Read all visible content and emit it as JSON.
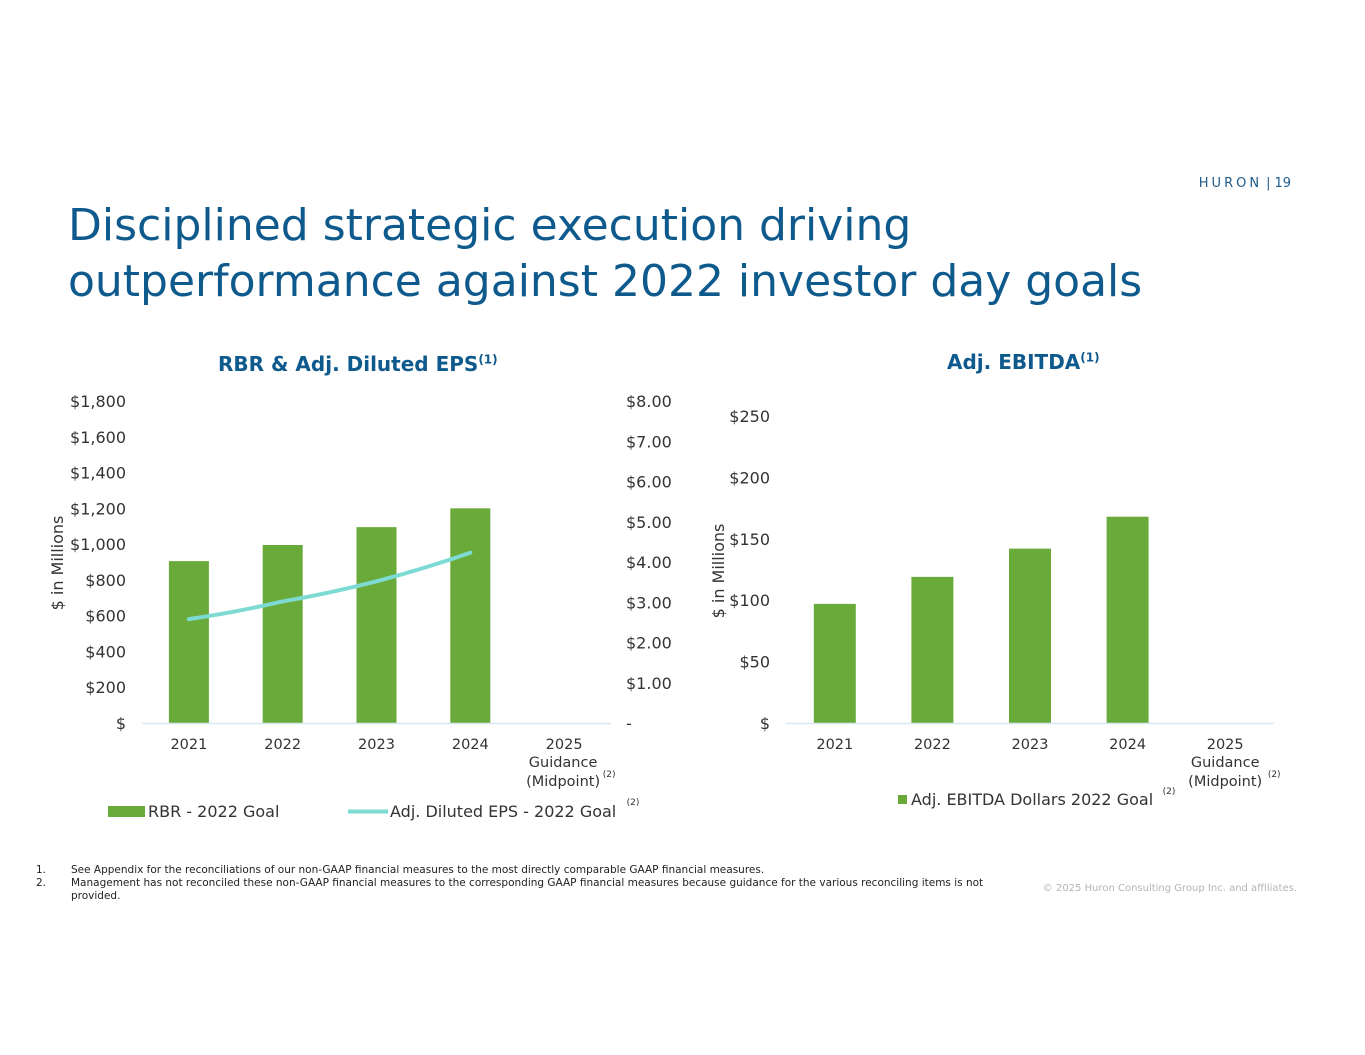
{
  "header": {
    "brand": "HURON",
    "separator": "|",
    "page_number": "19"
  },
  "title_line1": "Disciplined strategic execution driving",
  "title_line2": "outperformance against 2022 investor day goals",
  "chart_data": [
    {
      "type": "bar",
      "title": "RBR & Adj. Diluted EPS",
      "title_superscript": "(1)",
      "ylabel": "$ in Millions",
      "ylim": [
        0,
        1800
      ],
      "y_ticks": [
        "$",
        "$200",
        "$400",
        "$600",
        "$800",
        "$1,000",
        "$1,200",
        "$1,400",
        "$1,600",
        "$1,800"
      ],
      "y_tick_values": [
        0,
        200,
        400,
        600,
        800,
        1000,
        1200,
        1400,
        1600,
        1800
      ],
      "y2lim": [
        0,
        8
      ],
      "y2_ticks": [
        "-",
        "$1.00",
        "$2.00",
        "$3.00",
        "$4.00",
        "$5.00",
        "$6.00",
        "$7.00",
        "$8.00"
      ],
      "y2_tick_values": [
        0,
        1,
        2,
        3,
        4,
        5,
        6,
        7,
        8
      ],
      "categories": [
        "2021",
        "2022",
        "2023",
        "2024",
        "2025"
      ],
      "category_sublabels": [
        "Guidance",
        "(Midpoint)"
      ],
      "category_footnote": "(2)",
      "series": [
        {
          "name": "RBR - 2022 Goal",
          "type": "bar",
          "color": "#6aaa3a",
          "values": [
            905,
            995,
            1095,
            1200,
            null
          ]
        },
        {
          "name": "Adj. Diluted EPS - 2022 Goal",
          "type": "line",
          "axis": "secondary",
          "color": "#7edbd3",
          "values": [
            2.58,
            3.02,
            3.52,
            4.23,
            null
          ]
        }
      ],
      "legend_footnote": "(2)"
    },
    {
      "type": "bar",
      "title": "Adj. EBITDA",
      "title_superscript": "(1)",
      "ylabel": "$ in Millions",
      "ylim": [
        0,
        250
      ],
      "y_ticks": [
        "$",
        "$50",
        "$100",
        "$150",
        "$200",
        "$250"
      ],
      "y_tick_values": [
        0,
        50,
        100,
        150,
        200,
        250
      ],
      "categories": [
        "2021",
        "2022",
        "2023",
        "2024",
        "2025"
      ],
      "category_sublabels": [
        "Guidance",
        "(Midpoint)"
      ],
      "category_footnote": "(2)",
      "series": [
        {
          "name": "Adj. EBITDA Dollars 2022 Goal",
          "type": "bar",
          "color": "#6aaa3a",
          "values": [
            97,
            119,
            142,
            168,
            null
          ]
        }
      ],
      "legend_footnote": "(2)"
    }
  ],
  "footnotes": [
    {
      "num": "1.",
      "text": "See Appendix for the reconciliations of our non-GAAP financial measures to the most directly comparable GAAP financial measures."
    },
    {
      "num": "2.",
      "text": "Management has not reconciled these non-GAAP financial measures to the corresponding GAAP financial measures because guidance for the various reconciling items is not provided."
    }
  ],
  "copyright": "© 2025 Huron Consulting Group Inc. and affiliates."
}
